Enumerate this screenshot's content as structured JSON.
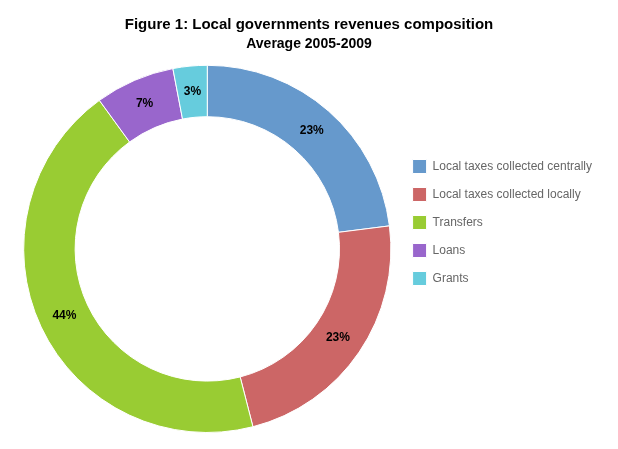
{
  "chart_data": {
    "type": "donut",
    "title": "Figure 1: Local governments revenues composition",
    "subtitle": "Average 2005-2009",
    "categories": [
      "Local taxes collected centrally",
      "Local taxes collected locally",
      "Transfers",
      "Loans",
      "Grants"
    ],
    "values": [
      23,
      23,
      44,
      7,
      3
    ],
    "value_labels": [
      "23%",
      "23%",
      "44%",
      "7%",
      "3%"
    ],
    "colors": [
      "#6699CC",
      "#CC6666",
      "#99CC33",
      "#9966CC",
      "#66CCDD"
    ],
    "data_labels": true,
    "legend": "right"
  }
}
